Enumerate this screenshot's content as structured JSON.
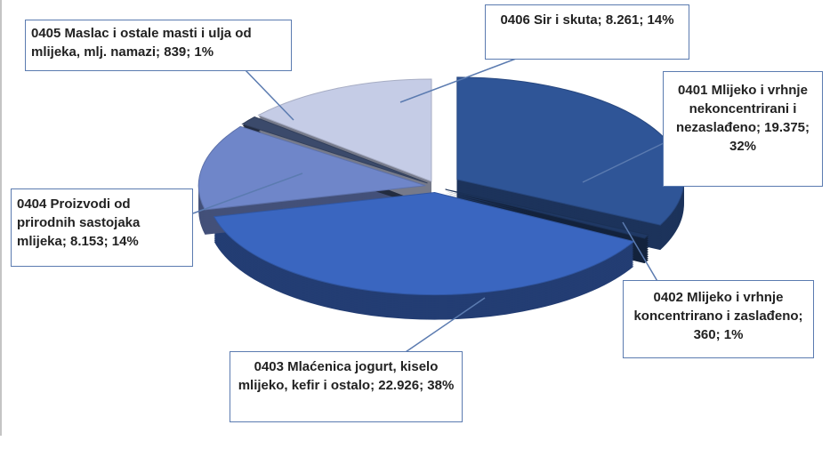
{
  "chart_data": {
    "type": "pie",
    "categories": [
      "0401 Mlijeko i vrhnje nekoncentrirani i nezaslađeno",
      "0402 Mlijeko i vrhnje koncentrirano i zaslađeno",
      "0403 Mlaćenica jogurt, kiselo mlijeko, kefir i ostalo",
      "0404 Proizvodi od prirodnih sastojaka mlijeka",
      "0405 Maslac i ostale masti i ulja od mlijeka, mlj. namazi",
      "0406 Sir i skuta"
    ],
    "values": [
      19375,
      360,
      22926,
      8153,
      839,
      8261
    ],
    "value_labels": [
      "0401 Mlijeko i vrhnje nekoncentrirani i nezaslađeno; 19.375; 32%",
      "0402 Mlijeko i vrhnje koncentrirano i zaslađeno; 360; 1%",
      "0403 Mlaćenica jogurt, kiselo mlijeko, kefir i ostalo; 22.926; 38%",
      "0404 Proizvodi od prirodnih sastojaka mlijeka; 8.153; 14%",
      "0405 Maslac i ostale masti i ulja od mlijeka, mlj. namazi; 839; 1%",
      "0406 Sir i skuta; 8.261; 14%"
    ],
    "colors": [
      "#2f5597",
      "#1f3864",
      "#3a66c0",
      "#6f86c9",
      "#3b4a6b",
      "#c5cce6"
    ]
  }
}
